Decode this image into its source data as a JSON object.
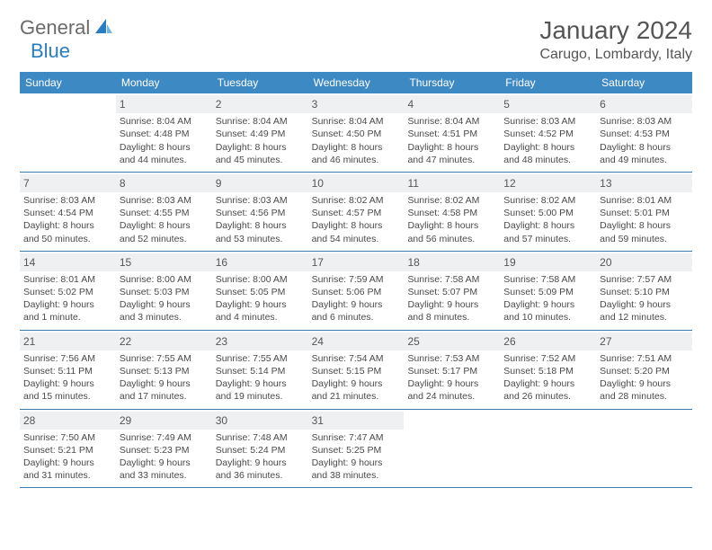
{
  "logo": {
    "text1": "General",
    "text2": "Blue"
  },
  "title": "January 2024",
  "location": "Carugo, Lombardy, Italy",
  "header_bg": "#3d89c3",
  "days_of_week": [
    "Sunday",
    "Monday",
    "Tuesday",
    "Wednesday",
    "Thursday",
    "Friday",
    "Saturday"
  ],
  "weeks": [
    [
      {
        "num": "",
        "lines": []
      },
      {
        "num": "1",
        "lines": [
          "Sunrise: 8:04 AM",
          "Sunset: 4:48 PM",
          "Daylight: 8 hours",
          "and 44 minutes."
        ]
      },
      {
        "num": "2",
        "lines": [
          "Sunrise: 8:04 AM",
          "Sunset: 4:49 PM",
          "Daylight: 8 hours",
          "and 45 minutes."
        ]
      },
      {
        "num": "3",
        "lines": [
          "Sunrise: 8:04 AM",
          "Sunset: 4:50 PM",
          "Daylight: 8 hours",
          "and 46 minutes."
        ]
      },
      {
        "num": "4",
        "lines": [
          "Sunrise: 8:04 AM",
          "Sunset: 4:51 PM",
          "Daylight: 8 hours",
          "and 47 minutes."
        ]
      },
      {
        "num": "5",
        "lines": [
          "Sunrise: 8:03 AM",
          "Sunset: 4:52 PM",
          "Daylight: 8 hours",
          "and 48 minutes."
        ]
      },
      {
        "num": "6",
        "lines": [
          "Sunrise: 8:03 AM",
          "Sunset: 4:53 PM",
          "Daylight: 8 hours",
          "and 49 minutes."
        ]
      }
    ],
    [
      {
        "num": "7",
        "lines": [
          "Sunrise: 8:03 AM",
          "Sunset: 4:54 PM",
          "Daylight: 8 hours",
          "and 50 minutes."
        ]
      },
      {
        "num": "8",
        "lines": [
          "Sunrise: 8:03 AM",
          "Sunset: 4:55 PM",
          "Daylight: 8 hours",
          "and 52 minutes."
        ]
      },
      {
        "num": "9",
        "lines": [
          "Sunrise: 8:03 AM",
          "Sunset: 4:56 PM",
          "Daylight: 8 hours",
          "and 53 minutes."
        ]
      },
      {
        "num": "10",
        "lines": [
          "Sunrise: 8:02 AM",
          "Sunset: 4:57 PM",
          "Daylight: 8 hours",
          "and 54 minutes."
        ]
      },
      {
        "num": "11",
        "lines": [
          "Sunrise: 8:02 AM",
          "Sunset: 4:58 PM",
          "Daylight: 8 hours",
          "and 56 minutes."
        ]
      },
      {
        "num": "12",
        "lines": [
          "Sunrise: 8:02 AM",
          "Sunset: 5:00 PM",
          "Daylight: 8 hours",
          "and 57 minutes."
        ]
      },
      {
        "num": "13",
        "lines": [
          "Sunrise: 8:01 AM",
          "Sunset: 5:01 PM",
          "Daylight: 8 hours",
          "and 59 minutes."
        ]
      }
    ],
    [
      {
        "num": "14",
        "lines": [
          "Sunrise: 8:01 AM",
          "Sunset: 5:02 PM",
          "Daylight: 9 hours",
          "and 1 minute."
        ]
      },
      {
        "num": "15",
        "lines": [
          "Sunrise: 8:00 AM",
          "Sunset: 5:03 PM",
          "Daylight: 9 hours",
          "and 3 minutes."
        ]
      },
      {
        "num": "16",
        "lines": [
          "Sunrise: 8:00 AM",
          "Sunset: 5:05 PM",
          "Daylight: 9 hours",
          "and 4 minutes."
        ]
      },
      {
        "num": "17",
        "lines": [
          "Sunrise: 7:59 AM",
          "Sunset: 5:06 PM",
          "Daylight: 9 hours",
          "and 6 minutes."
        ]
      },
      {
        "num": "18",
        "lines": [
          "Sunrise: 7:58 AM",
          "Sunset: 5:07 PM",
          "Daylight: 9 hours",
          "and 8 minutes."
        ]
      },
      {
        "num": "19",
        "lines": [
          "Sunrise: 7:58 AM",
          "Sunset: 5:09 PM",
          "Daylight: 9 hours",
          "and 10 minutes."
        ]
      },
      {
        "num": "20",
        "lines": [
          "Sunrise: 7:57 AM",
          "Sunset: 5:10 PM",
          "Daylight: 9 hours",
          "and 12 minutes."
        ]
      }
    ],
    [
      {
        "num": "21",
        "lines": [
          "Sunrise: 7:56 AM",
          "Sunset: 5:11 PM",
          "Daylight: 9 hours",
          "and 15 minutes."
        ]
      },
      {
        "num": "22",
        "lines": [
          "Sunrise: 7:55 AM",
          "Sunset: 5:13 PM",
          "Daylight: 9 hours",
          "and 17 minutes."
        ]
      },
      {
        "num": "23",
        "lines": [
          "Sunrise: 7:55 AM",
          "Sunset: 5:14 PM",
          "Daylight: 9 hours",
          "and 19 minutes."
        ]
      },
      {
        "num": "24",
        "lines": [
          "Sunrise: 7:54 AM",
          "Sunset: 5:15 PM",
          "Daylight: 9 hours",
          "and 21 minutes."
        ]
      },
      {
        "num": "25",
        "lines": [
          "Sunrise: 7:53 AM",
          "Sunset: 5:17 PM",
          "Daylight: 9 hours",
          "and 24 minutes."
        ]
      },
      {
        "num": "26",
        "lines": [
          "Sunrise: 7:52 AM",
          "Sunset: 5:18 PM",
          "Daylight: 9 hours",
          "and 26 minutes."
        ]
      },
      {
        "num": "27",
        "lines": [
          "Sunrise: 7:51 AM",
          "Sunset: 5:20 PM",
          "Daylight: 9 hours",
          "and 28 minutes."
        ]
      }
    ],
    [
      {
        "num": "28",
        "lines": [
          "Sunrise: 7:50 AM",
          "Sunset: 5:21 PM",
          "Daylight: 9 hours",
          "and 31 minutes."
        ]
      },
      {
        "num": "29",
        "lines": [
          "Sunrise: 7:49 AM",
          "Sunset: 5:23 PM",
          "Daylight: 9 hours",
          "and 33 minutes."
        ]
      },
      {
        "num": "30",
        "lines": [
          "Sunrise: 7:48 AM",
          "Sunset: 5:24 PM",
          "Daylight: 9 hours",
          "and 36 minutes."
        ]
      },
      {
        "num": "31",
        "lines": [
          "Sunrise: 7:47 AM",
          "Sunset: 5:25 PM",
          "Daylight: 9 hours",
          "and 38 minutes."
        ]
      },
      {
        "num": "",
        "lines": []
      },
      {
        "num": "",
        "lines": []
      },
      {
        "num": "",
        "lines": []
      }
    ]
  ]
}
